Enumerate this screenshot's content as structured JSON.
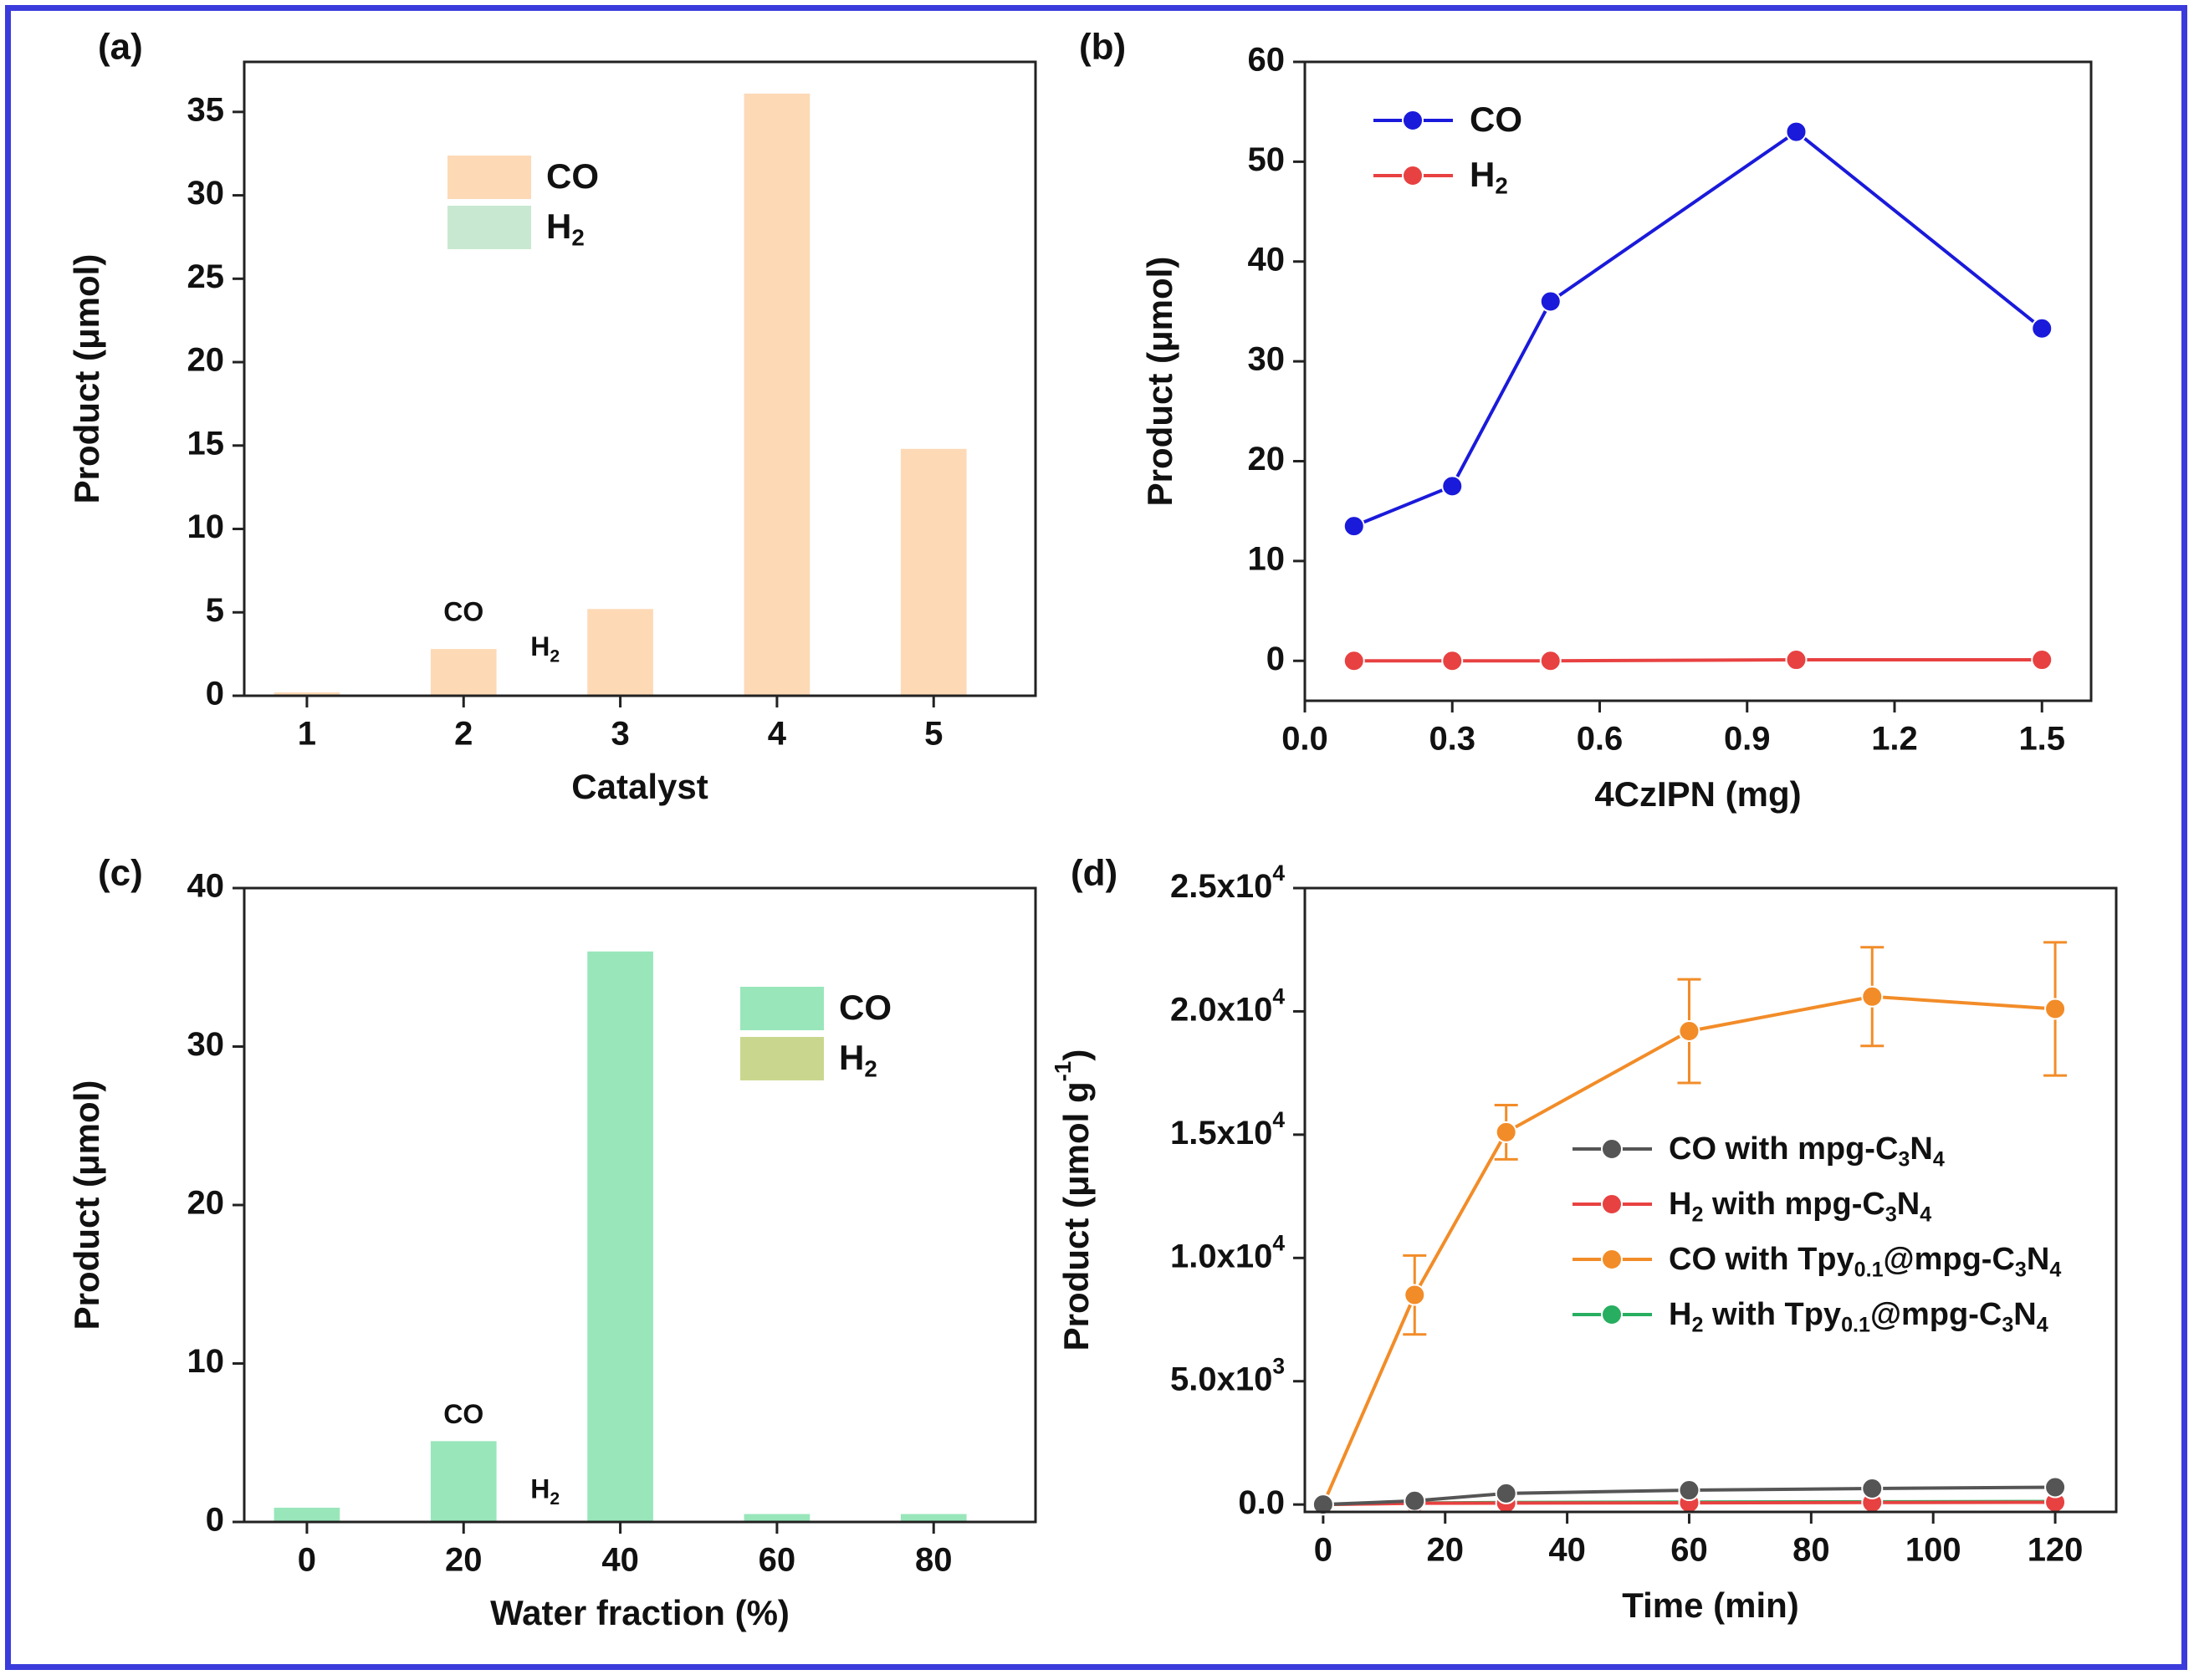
{
  "frame_color": "#3b3bdc",
  "chart_data": [
    {
      "panel": "(a)",
      "type": "bar",
      "categories": [
        "1",
        "2",
        "3",
        "4",
        "5"
      ],
      "series": [
        {
          "name": "CO",
          "color": "#fdd9b6",
          "values": [
            0.2,
            2.8,
            5.2,
            36.1,
            14.8
          ]
        },
        {
          "name": "H2",
          "color": "#c9e8d1",
          "values": [
            0,
            0,
            0,
            0,
            0
          ]
        }
      ],
      "legend": [
        {
          "label": "CO",
          "sub": ""
        },
        {
          "label": "H",
          "sub": "2"
        }
      ],
      "annotations": [
        {
          "text": "CO",
          "sub": ""
        },
        {
          "text": "H",
          "sub": "2"
        }
      ],
      "xlabel": "Catalyst",
      "ylabel": "Product (μmol)",
      "ylim": [
        0,
        38
      ],
      "yticks": [
        "0",
        "5",
        "10",
        "15",
        "20",
        "25",
        "30",
        "35"
      ],
      "ytick_values": [
        0,
        5,
        10,
        15,
        20,
        25,
        30,
        35
      ]
    },
    {
      "panel": "(b)",
      "type": "line",
      "x": [
        0.1,
        0.3,
        0.5,
        1.0,
        1.5
      ],
      "series": [
        {
          "name": "CO",
          "color": "#1a1adb",
          "values": [
            13.5,
            17.5,
            36.0,
            53.0,
            33.3
          ]
        },
        {
          "name": "H2",
          "color": "#e84141",
          "values": [
            0,
            0,
            0,
            0.1,
            0.1
          ]
        }
      ],
      "legend": [
        {
          "label": "CO",
          "sub": ""
        },
        {
          "label": "H",
          "sub": "2"
        }
      ],
      "xlabel": "4CzIPN (mg)",
      "ylabel": "Product (μmol)",
      "xlim": [
        0.0,
        1.6
      ],
      "ylim": [
        -4,
        60
      ],
      "xticks": [
        "0.0",
        "0.3",
        "0.6",
        "0.9",
        "1.2",
        "1.5"
      ],
      "xtick_values": [
        0.0,
        0.3,
        0.6,
        0.9,
        1.2,
        1.5
      ],
      "yticks": [
        "0",
        "10",
        "20",
        "30",
        "40",
        "50",
        "60"
      ],
      "ytick_values": [
        0,
        10,
        20,
        30,
        40,
        50,
        60
      ]
    },
    {
      "panel": "(c)",
      "type": "bar",
      "categories": [
        "0",
        "20",
        "40",
        "60",
        "80"
      ],
      "series": [
        {
          "name": "CO",
          "color": "#99e6bb",
          "values": [
            0.9,
            5.1,
            36.0,
            0.5,
            0.5
          ]
        },
        {
          "name": "H2",
          "color": "#c9d78e",
          "values": [
            0,
            0,
            0,
            0,
            0
          ]
        }
      ],
      "legend": [
        {
          "label": "CO",
          "sub": ""
        },
        {
          "label": "H",
          "sub": "2"
        }
      ],
      "annotations": [
        {
          "text": "CO",
          "sub": ""
        },
        {
          "text": "H",
          "sub": "2"
        }
      ],
      "xlabel": "Water fraction (%)",
      "ylabel": "Product (μmol)",
      "ylim": [
        0,
        40
      ],
      "yticks": [
        "0",
        "10",
        "20",
        "30",
        "40"
      ],
      "ytick_values": [
        0,
        10,
        20,
        30,
        40
      ]
    },
    {
      "panel": "(d)",
      "type": "line",
      "x": [
        0,
        15,
        30,
        60,
        90,
        120
      ],
      "series": [
        {
          "name": "CO with mpg-C3N4",
          "color": "#555555",
          "values": [
            0,
            150,
            450,
            580,
            650,
            700
          ],
          "errors": [
            0,
            0,
            0,
            0,
            0,
            0
          ]
        },
        {
          "name": "H2 with mpg-C3N4",
          "color": "#e84141",
          "values": [
            0,
            50,
            60,
            70,
            80,
            90
          ],
          "errors": [
            0,
            0,
            0,
            0,
            0,
            0
          ]
        },
        {
          "name": "CO with Tpy0.1@mpg-C3N4",
          "color": "#f28c28",
          "values": [
            0,
            8500,
            15100,
            19200,
            20600,
            20100
          ],
          "errors": [
            0,
            1600,
            1100,
            2100,
            2000,
            2700
          ]
        },
        {
          "name": "H2 with Tpy0.1@mpg-C3N4",
          "color": "#27ae60",
          "values": [
            0,
            60,
            80,
            100,
            110,
            120
          ],
          "errors": [
            0,
            0,
            0,
            0,
            0,
            0
          ]
        }
      ],
      "legend": [
        {
          "parts": [
            [
              "CO with mpg-C",
              ""
            ],
            [
              "3",
              "sub"
            ],
            [
              "N",
              ""
            ],
            [
              "4",
              "sub"
            ]
          ]
        },
        {
          "parts": [
            [
              "H",
              ""
            ],
            [
              "2",
              "sub"
            ],
            [
              " with mpg-C",
              ""
            ],
            [
              "3",
              "sub"
            ],
            [
              "N",
              ""
            ],
            [
              "4",
              "sub"
            ]
          ]
        },
        {
          "parts": [
            [
              "CO with Tpy",
              ""
            ],
            [
              "0.1",
              "sub"
            ],
            [
              "@mpg-C",
              ""
            ],
            [
              "3",
              "sub"
            ],
            [
              "N",
              ""
            ],
            [
              "4",
              "sub"
            ]
          ]
        },
        {
          "parts": [
            [
              "H",
              ""
            ],
            [
              "2",
              "sub"
            ],
            [
              " with Tpy",
              ""
            ],
            [
              "0.1",
              "sub"
            ],
            [
              "@mpg-C",
              ""
            ],
            [
              "3",
              "sub"
            ],
            [
              "N",
              ""
            ],
            [
              "4",
              "sub"
            ]
          ]
        }
      ],
      "xlabel": "Time (min)",
      "ylabel": "Product (μmol g-1)",
      "ylabel_parts": [
        [
          "Product (μmol g",
          ""
        ],
        [
          "-1",
          "sup"
        ],
        [
          ")",
          ""
        ]
      ],
      "xlim": [
        -3,
        130
      ],
      "ylim": [
        -300,
        25000
      ],
      "xticks": [
        "0",
        "20",
        "40",
        "60",
        "80",
        "100",
        "120"
      ],
      "xtick_values": [
        0,
        20,
        40,
        60,
        80,
        100,
        120
      ],
      "yticks": [
        {
          "base": "0.0",
          "exp": ""
        },
        {
          "base": "5.0x10",
          "exp": "3"
        },
        {
          "base": "1.0x10",
          "exp": "4"
        },
        {
          "base": "1.5x10",
          "exp": "4"
        },
        {
          "base": "2.0x10",
          "exp": "4"
        },
        {
          "base": "2.5x10",
          "exp": "4"
        }
      ],
      "ytick_values": [
        0,
        5000,
        10000,
        15000,
        20000,
        25000
      ]
    }
  ]
}
